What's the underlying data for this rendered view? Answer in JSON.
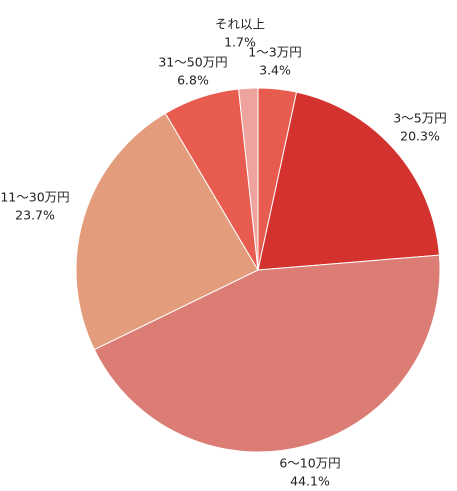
{
  "chart_data": {
    "type": "pie",
    "categories": [
      "1〜3万円",
      "3〜5万円",
      "6〜10万円",
      "11〜30万円",
      "31〜50万円",
      "それ以上"
    ],
    "values": [
      3.4,
      20.3,
      44.1,
      23.7,
      6.8,
      1.7
    ],
    "value_labels": [
      "3.4%",
      "20.3%",
      "44.1%",
      "23.7%",
      "6.8%",
      "1.7%"
    ],
    "colors": [
      "#e85c50",
      "#d3322f",
      "#db7d74",
      "#e49d7c",
      "#e85c50",
      "#efa39e"
    ]
  }
}
